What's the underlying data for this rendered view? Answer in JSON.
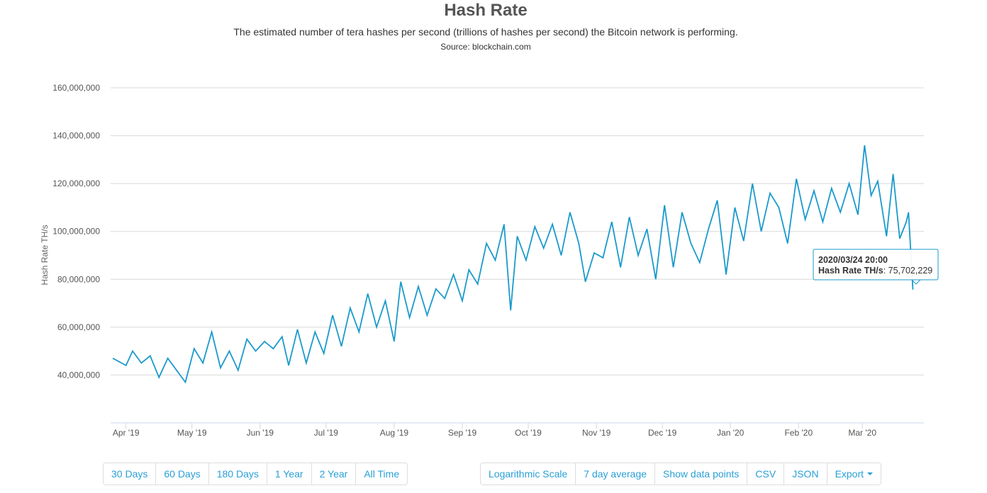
{
  "header": {
    "title": "Hash Rate",
    "subtitle": "The estimated number of tera hashes per second (trillions of hashes per second) the Bitcoin network is performing.",
    "source": "Source: blockchain.com"
  },
  "range_buttons": [
    "30 Days",
    "60 Days",
    "180 Days",
    "1 Year",
    "2 Year",
    "All Time"
  ],
  "option_buttons": [
    "Logarithmic Scale",
    "7 day average",
    "Show data points",
    "CSV",
    "JSON"
  ],
  "export_label": "Export",
  "colors": {
    "series": "#1a9acc",
    "grid": "#d8d8d8",
    "accent": "#2a9fd6"
  },
  "tooltip": {
    "date": "2020/03/24 20:00",
    "label": "Hash Rate TH/s",
    "value": "75,702,229"
  },
  "chart_data": {
    "type": "line",
    "title": "Hash Rate",
    "xlabel": "",
    "ylabel": "Hash Rate TH/s",
    "ylim": [
      20000000,
      160000000
    ],
    "y_ticks": [
      40000000,
      60000000,
      80000000,
      100000000,
      120000000,
      140000000,
      160000000
    ],
    "y_tick_labels": [
      "40,000,000",
      "60,000,000",
      "80,000,000",
      "100,000,000",
      "120,000,000",
      "140,000,000",
      "160,000,000"
    ],
    "x_ticks": [
      {
        "label": "Apr '19",
        "date": "2019-04-01"
      },
      {
        "label": "May '19",
        "date": "2019-05-01"
      },
      {
        "label": "Jun '19",
        "date": "2019-06-01"
      },
      {
        "label": "Jul '19",
        "date": "2019-07-01"
      },
      {
        "label": "Aug '19",
        "date": "2019-08-01"
      },
      {
        "label": "Sep '19",
        "date": "2019-09-01"
      },
      {
        "label": "Oct '19",
        "date": "2019-10-01"
      },
      {
        "label": "Nov '19",
        "date": "2019-11-01"
      },
      {
        "label": "Dec '19",
        "date": "2019-12-01"
      },
      {
        "label": "Jan '20",
        "date": "2020-01-01"
      },
      {
        "label": "Feb '20",
        "date": "2020-02-01"
      },
      {
        "label": "Mar '20",
        "date": "2020-03-01"
      }
    ],
    "x_range": [
      "2019-03-25",
      "2020-03-29"
    ],
    "grid": true,
    "legend": "none",
    "series": [
      {
        "name": "Hash Rate TH/s",
        "points": [
          [
            "2019-03-26",
            47000000
          ],
          [
            "2019-04-01",
            44000000
          ],
          [
            "2019-04-04",
            50000000
          ],
          [
            "2019-04-08",
            45000000
          ],
          [
            "2019-04-12",
            48000000
          ],
          [
            "2019-04-16",
            39000000
          ],
          [
            "2019-04-20",
            47000000
          ],
          [
            "2019-04-24",
            42000000
          ],
          [
            "2019-04-28",
            37000000
          ],
          [
            "2019-05-02",
            51000000
          ],
          [
            "2019-05-06",
            45000000
          ],
          [
            "2019-05-10",
            58000000
          ],
          [
            "2019-05-14",
            43000000
          ],
          [
            "2019-05-18",
            50000000
          ],
          [
            "2019-05-22",
            42000000
          ],
          [
            "2019-05-26",
            55000000
          ],
          [
            "2019-05-30",
            50000000
          ],
          [
            "2019-06-03",
            54000000
          ],
          [
            "2019-06-07",
            51000000
          ],
          [
            "2019-06-11",
            56000000
          ],
          [
            "2019-06-14",
            44000000
          ],
          [
            "2019-06-18",
            59000000
          ],
          [
            "2019-06-22",
            45000000
          ],
          [
            "2019-06-26",
            58000000
          ],
          [
            "2019-06-30",
            49000000
          ],
          [
            "2019-07-04",
            65000000
          ],
          [
            "2019-07-08",
            52000000
          ],
          [
            "2019-07-12",
            68000000
          ],
          [
            "2019-07-16",
            58000000
          ],
          [
            "2019-07-20",
            74000000
          ],
          [
            "2019-07-24",
            60000000
          ],
          [
            "2019-07-28",
            71000000
          ],
          [
            "2019-08-01",
            54000000
          ],
          [
            "2019-08-04",
            79000000
          ],
          [
            "2019-08-08",
            64000000
          ],
          [
            "2019-08-12",
            77000000
          ],
          [
            "2019-08-16",
            65000000
          ],
          [
            "2019-08-20",
            76000000
          ],
          [
            "2019-08-24",
            72000000
          ],
          [
            "2019-08-28",
            82000000
          ],
          [
            "2019-09-01",
            71000000
          ],
          [
            "2019-09-04",
            84000000
          ],
          [
            "2019-09-08",
            78000000
          ],
          [
            "2019-09-12",
            95000000
          ],
          [
            "2019-09-16",
            88000000
          ],
          [
            "2019-09-20",
            103000000
          ],
          [
            "2019-09-23",
            67000000
          ],
          [
            "2019-09-26",
            98000000
          ],
          [
            "2019-09-30",
            88000000
          ],
          [
            "2019-10-04",
            102000000
          ],
          [
            "2019-10-08",
            93000000
          ],
          [
            "2019-10-12",
            103000000
          ],
          [
            "2019-10-16",
            90000000
          ],
          [
            "2019-10-20",
            108000000
          ],
          [
            "2019-10-24",
            95000000
          ],
          [
            "2019-10-27",
            79000000
          ],
          [
            "2019-10-31",
            91000000
          ],
          [
            "2019-11-04",
            89000000
          ],
          [
            "2019-11-08",
            104000000
          ],
          [
            "2019-11-12",
            85000000
          ],
          [
            "2019-11-16",
            106000000
          ],
          [
            "2019-11-20",
            90000000
          ],
          [
            "2019-11-24",
            101000000
          ],
          [
            "2019-11-28",
            80000000
          ],
          [
            "2019-12-02",
            111000000
          ],
          [
            "2019-12-06",
            85000000
          ],
          [
            "2019-12-10",
            108000000
          ],
          [
            "2019-12-14",
            95000000
          ],
          [
            "2019-12-18",
            87000000
          ],
          [
            "2019-12-22",
            101000000
          ],
          [
            "2019-12-26",
            113000000
          ],
          [
            "2019-12-30",
            82000000
          ],
          [
            "2020-01-03",
            110000000
          ],
          [
            "2020-01-07",
            96000000
          ],
          [
            "2020-01-11",
            120000000
          ],
          [
            "2020-01-15",
            100000000
          ],
          [
            "2020-01-19",
            116000000
          ],
          [
            "2020-01-23",
            110000000
          ],
          [
            "2020-01-27",
            95000000
          ],
          [
            "2020-01-31",
            122000000
          ],
          [
            "2020-02-04",
            105000000
          ],
          [
            "2020-02-08",
            117000000
          ],
          [
            "2020-02-12",
            104000000
          ],
          [
            "2020-02-16",
            118000000
          ],
          [
            "2020-02-20",
            108000000
          ],
          [
            "2020-02-24",
            120000000
          ],
          [
            "2020-02-28",
            107000000
          ],
          [
            "2020-03-02",
            136000000
          ],
          [
            "2020-03-05",
            115000000
          ],
          [
            "2020-03-08",
            121000000
          ],
          [
            "2020-03-12",
            98000000
          ],
          [
            "2020-03-15",
            124000000
          ],
          [
            "2020-03-18",
            97000000
          ],
          [
            "2020-03-21",
            104000000
          ],
          [
            "2020-03-22",
            108000000
          ],
          [
            "2020-03-24",
            75702229
          ]
        ]
      }
    ]
  }
}
